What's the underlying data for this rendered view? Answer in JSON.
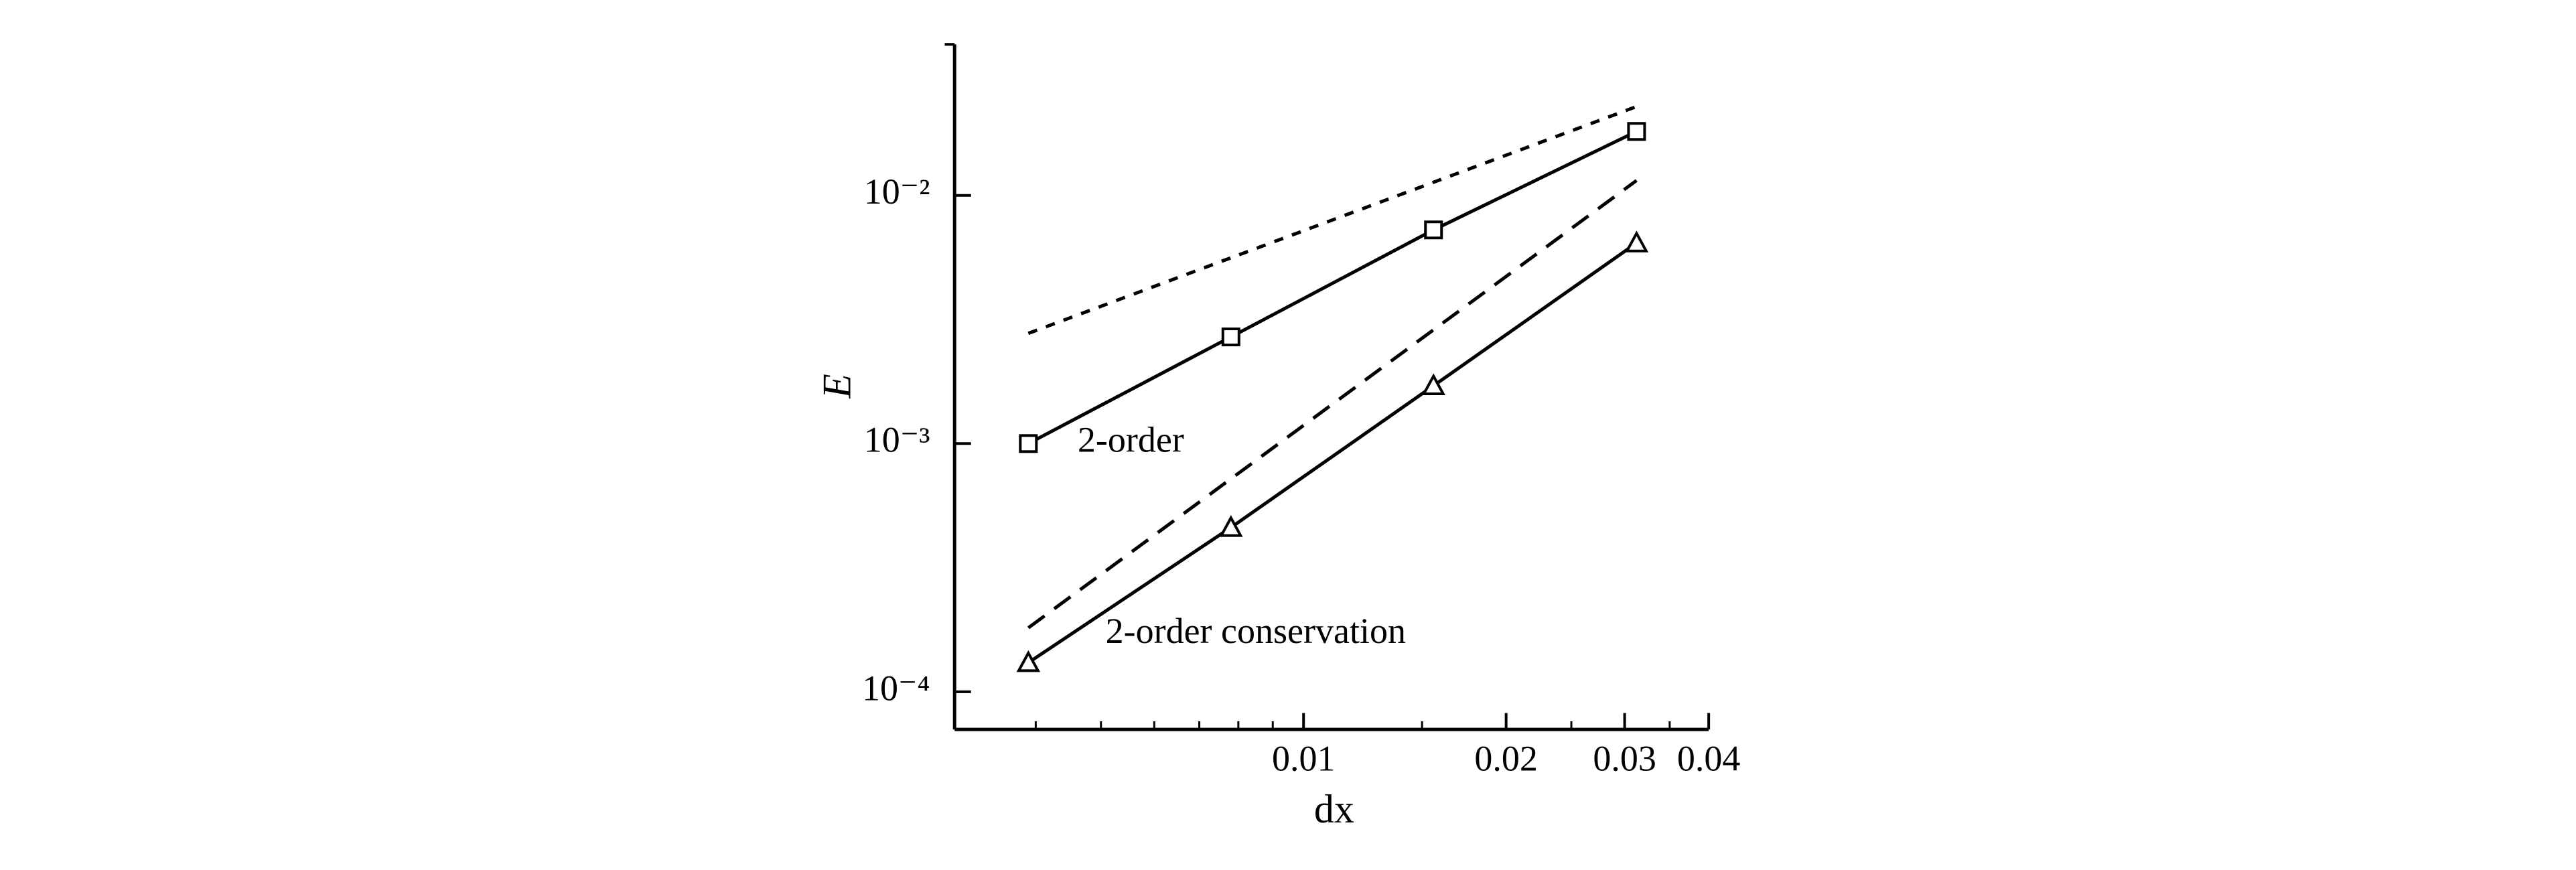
{
  "chart_data": {
    "type": "line",
    "xlabel": "dx",
    "ylabel": "E",
    "xscale": "log",
    "yscale": "log",
    "xlim": [
      0.00303,
      0.04
    ],
    "ylim": [
      7.05e-05,
      0.0406
    ],
    "xticks": [
      0.01,
      0.02,
      0.03,
      0.04
    ],
    "xminorticks": [
      0.004,
      0.005,
      0.006,
      0.007,
      0.008,
      0.009,
      0.015,
      0.025,
      0.035
    ],
    "yticks": [
      {
        "value": 0.0001,
        "label": "10⁻⁴"
      },
      {
        "value": 0.001,
        "label": "10⁻³"
      },
      {
        "value": 0.01,
        "label": "10⁻²"
      }
    ],
    "x": [
      0.0039,
      0.0078,
      0.0156,
      0.03125
    ],
    "series": [
      {
        "name": "2-order",
        "color": "#000000",
        "marker": "square",
        "dash": "solid",
        "values": [
          0.001,
          0.00269,
          0.00726,
          0.0181
        ]
      },
      {
        "name": "2-order conservation",
        "color": "#000000",
        "marker": "triangle",
        "dash": "solid",
        "values": [
          0.000131,
          0.000459,
          0.00171,
          0.00643
        ]
      },
      {
        "color": "#000000",
        "dash": "short",
        "x": [
          0.0039,
          0.03125
        ],
        "values": [
          0.00278,
          0.0228
        ]
      },
      {
        "color": "#000000",
        "dash": "long",
        "x": [
          0.0039,
          0.03125
        ],
        "values": [
          0.000181,
          0.01148
        ]
      }
    ]
  }
}
